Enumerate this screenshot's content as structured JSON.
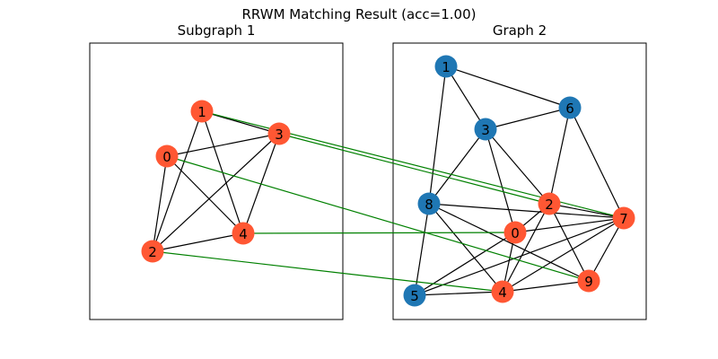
{
  "chart_data": {
    "type": "graph-matching",
    "title": "RRWM Matching Result (acc=1.00)",
    "colors": {
      "matched": "#ff5733",
      "unmatched": "#1f77b4",
      "edge": "#000000",
      "match_edge": "#008000"
    },
    "panels": [
      {
        "title": "Subgraph 1",
        "nodes": [
          {
            "id": "0",
            "matched": true
          },
          {
            "id": "1",
            "matched": true
          },
          {
            "id": "2",
            "matched": true
          },
          {
            "id": "3",
            "matched": true
          },
          {
            "id": "4",
            "matched": true
          }
        ],
        "edges": [
          [
            "1",
            "3"
          ],
          [
            "1",
            "2"
          ],
          [
            "1",
            "4"
          ],
          [
            "0",
            "3"
          ],
          [
            "0",
            "2"
          ],
          [
            "0",
            "4"
          ],
          [
            "3",
            "2"
          ],
          [
            "3",
            "4"
          ],
          [
            "2",
            "4"
          ]
        ]
      },
      {
        "title": "Graph 2",
        "nodes": [
          {
            "id": "1",
            "matched": false
          },
          {
            "id": "6",
            "matched": false
          },
          {
            "id": "3",
            "matched": false
          },
          {
            "id": "8",
            "matched": false
          },
          {
            "id": "5",
            "matched": false
          },
          {
            "id": "2",
            "matched": true
          },
          {
            "id": "7",
            "matched": true
          },
          {
            "id": "0",
            "matched": true
          },
          {
            "id": "9",
            "matched": true
          },
          {
            "id": "4",
            "matched": true
          }
        ],
        "edges": [
          [
            "1",
            "3"
          ],
          [
            "1",
            "6"
          ],
          [
            "1",
            "8"
          ],
          [
            "3",
            "6"
          ],
          [
            "3",
            "8"
          ],
          [
            "3",
            "2"
          ],
          [
            "3",
            "0"
          ],
          [
            "6",
            "2"
          ],
          [
            "6",
            "7"
          ],
          [
            "8",
            "5"
          ],
          [
            "8",
            "4"
          ],
          [
            "8",
            "9"
          ],
          [
            "8",
            "7"
          ],
          [
            "2",
            "7"
          ],
          [
            "2",
            "0"
          ],
          [
            "2",
            "4"
          ],
          [
            "2",
            "9"
          ],
          [
            "0",
            "7"
          ],
          [
            "0",
            "5"
          ],
          [
            "0",
            "4"
          ],
          [
            "7",
            "5"
          ],
          [
            "7",
            "4"
          ],
          [
            "7",
            "9"
          ],
          [
            "5",
            "4"
          ],
          [
            "4",
            "9"
          ]
        ]
      }
    ],
    "matches": [
      [
        "1",
        "7"
      ],
      [
        "3",
        "2"
      ],
      [
        "0",
        "9"
      ],
      [
        "4",
        "0"
      ],
      [
        "2",
        "4"
      ]
    ]
  }
}
